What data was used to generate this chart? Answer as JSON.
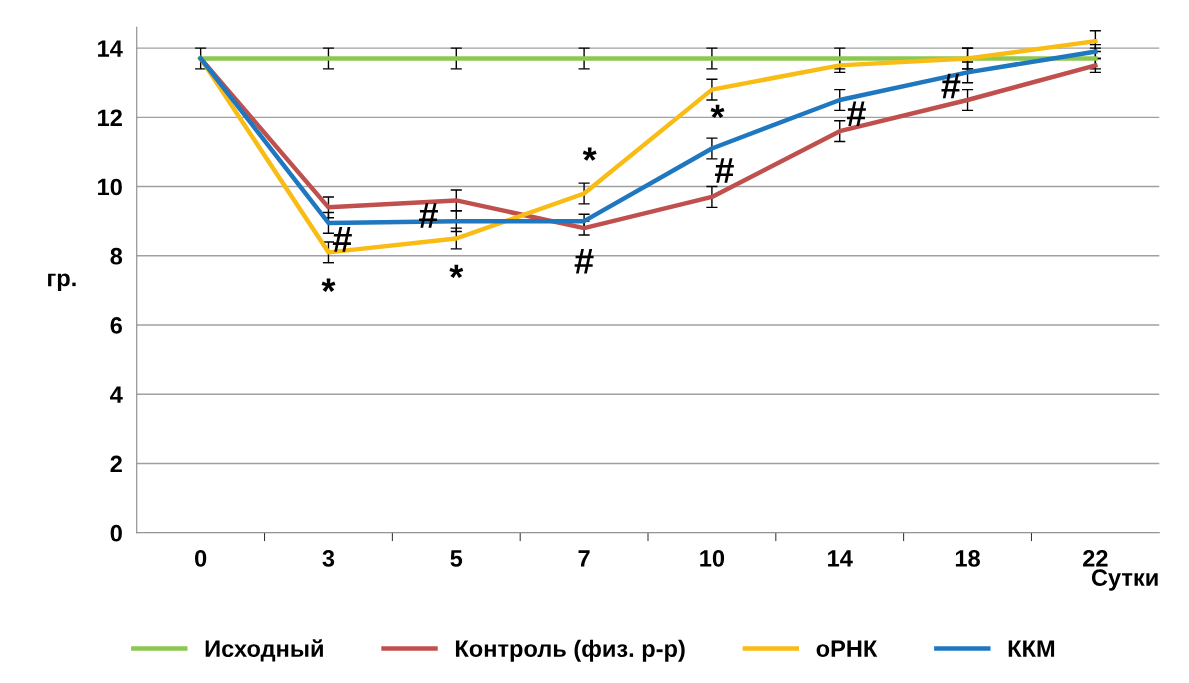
{
  "chart_data": {
    "type": "line",
    "xlabel": "Сутки",
    "ylabel": "гр.",
    "categories": [
      "0",
      "3",
      "5",
      "7",
      "10",
      "14",
      "18",
      "22"
    ],
    "ylim": [
      0,
      14.6
    ],
    "yticks": [
      0,
      2,
      4,
      6,
      8,
      10,
      12,
      14
    ],
    "grid": "y",
    "legend": "bottom",
    "marker": "none",
    "line_style": "solid",
    "series": [
      {
        "name": "Исходный",
        "color": "#8cc850",
        "values": [
          13.7,
          13.7,
          13.7,
          13.7,
          13.7,
          13.7,
          13.7,
          13.7
        ],
        "errors": [
          0.3,
          0.3,
          0.3,
          0.3,
          0.3,
          0.3,
          0.3,
          0.3
        ]
      },
      {
        "name": "Контроль (физ. р-р)",
        "color": "#c0504d",
        "values": [
          13.7,
          9.4,
          9.6,
          8.8,
          9.7,
          11.6,
          12.5,
          13.5
        ],
        "errors": [
          null,
          0.3,
          0.3,
          0.2,
          0.3,
          0.3,
          0.3,
          0.2
        ]
      },
      {
        "name": "оРНК",
        "color": "#f9bc14",
        "values": [
          13.7,
          8.1,
          8.5,
          9.8,
          12.8,
          13.5,
          13.7,
          14.2
        ],
        "errors": [
          null,
          0.3,
          0.3,
          0.3,
          0.3,
          0.2,
          0.3,
          0.3
        ]
      },
      {
        "name": "ККМ",
        "color": "#1f77c0",
        "values": [
          13.7,
          8.95,
          9.0,
          9.0,
          11.1,
          12.5,
          13.3,
          13.9
        ],
        "errors": [
          null,
          0.3,
          0.3,
          0.2,
          0.3,
          0.3,
          0.3,
          0.2
        ]
      }
    ],
    "annotations": [
      {
        "text": "#",
        "x": "3",
        "y": 8.95
      },
      {
        "text": "*",
        "x": "3",
        "y": 8.1
      },
      {
        "text": "#",
        "x": "5",
        "y": 9.0
      },
      {
        "text": "*",
        "x": "5",
        "y": 8.5
      },
      {
        "text": "*",
        "x": "7",
        "y": 9.8
      },
      {
        "text": "#",
        "x": "7",
        "y": 8.8
      },
      {
        "text": "*",
        "x": "10",
        "y": 12.8
      },
      {
        "text": "#",
        "x": "10",
        "y": 11.1
      },
      {
        "text": "#",
        "x": "14",
        "y": 12.5
      },
      {
        "text": "#",
        "x": "18",
        "y": 13.3
      }
    ]
  }
}
